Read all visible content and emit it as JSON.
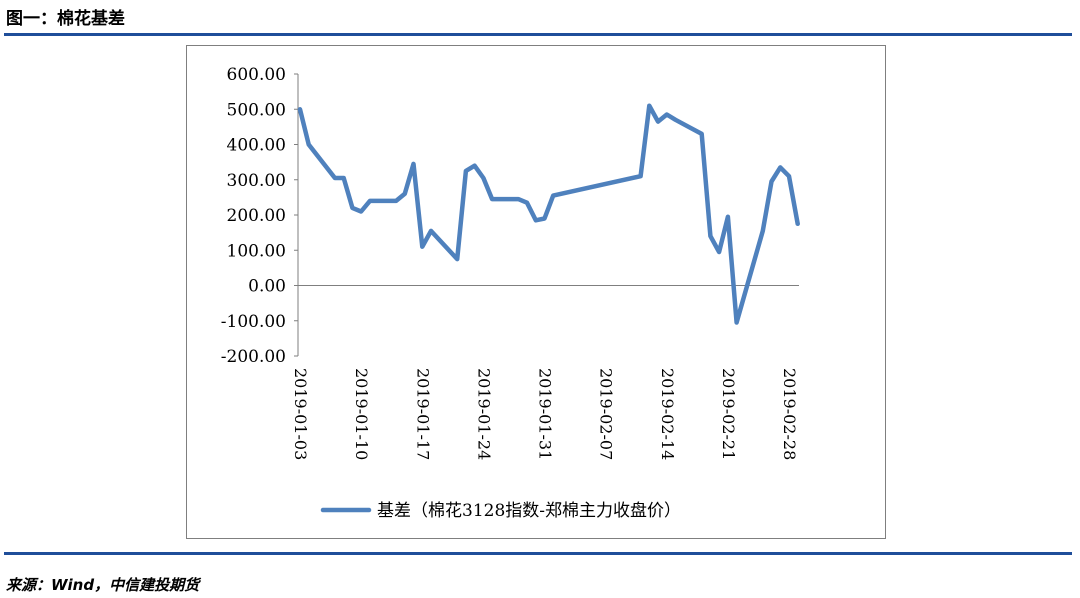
{
  "header": {
    "title": "图一：棉花基差"
  },
  "footer": {
    "source": "来源：Wind，中信建投期货"
  },
  "chart_data": {
    "type": "line",
    "title": "图一：棉花基差",
    "xlabel": "",
    "ylabel": "",
    "ylim": [
      -200,
      600
    ],
    "y_ticks": [
      "600.00",
      "500.00",
      "400.00",
      "300.00",
      "200.00",
      "100.00",
      "0.00",
      "-100.00",
      "-200.00"
    ],
    "x_ticks": [
      "2019-01-03",
      "2019-01-10",
      "2019-01-17",
      "2019-01-24",
      "2019-01-31",
      "2019-02-07",
      "2019-02-14",
      "2019-02-21",
      "2019-02-28"
    ],
    "color": "#4f81bd",
    "legend": {
      "position": "bottom",
      "label": "基差（棉花3128指数-郑棉主力收盘价）"
    },
    "series": [
      {
        "name": "基差（棉花3128指数-郑棉主力收盘价）",
        "points": [
          [
            "2019-01-03",
            500
          ],
          [
            "2019-01-04",
            400
          ],
          [
            "2019-01-07",
            305
          ],
          [
            "2019-01-08",
            305
          ],
          [
            "2019-01-09",
            220
          ],
          [
            "2019-01-10",
            210
          ],
          [
            "2019-01-11",
            240
          ],
          [
            "2019-01-14",
            240
          ],
          [
            "2019-01-15",
            260
          ],
          [
            "2019-01-16",
            345
          ],
          [
            "2019-01-17",
            110
          ],
          [
            "2019-01-18",
            155
          ],
          [
            "2019-01-21",
            75
          ],
          [
            "2019-01-22",
            325
          ],
          [
            "2019-01-23",
            340
          ],
          [
            "2019-01-24",
            305
          ],
          [
            "2019-01-25",
            245
          ],
          [
            "2019-01-28",
            245
          ],
          [
            "2019-01-29",
            235
          ],
          [
            "2019-01-30",
            185
          ],
          [
            "2019-01-31",
            190
          ],
          [
            "2019-02-01",
            255
          ],
          [
            "2019-02-11",
            310
          ],
          [
            "2019-02-12",
            510
          ],
          [
            "2019-02-13",
            465
          ],
          [
            "2019-02-14",
            485
          ],
          [
            "2019-02-15",
            470
          ],
          [
            "2019-02-18",
            430
          ],
          [
            "2019-02-19",
            140
          ],
          [
            "2019-02-20",
            95
          ],
          [
            "2019-02-21",
            195
          ],
          [
            "2019-02-22",
            -105
          ],
          [
            "2019-02-25",
            155
          ],
          [
            "2019-02-26",
            295
          ],
          [
            "2019-02-27",
            335
          ],
          [
            "2019-02-28",
            310
          ],
          [
            "2019-03-01",
            175
          ]
        ]
      }
    ]
  }
}
